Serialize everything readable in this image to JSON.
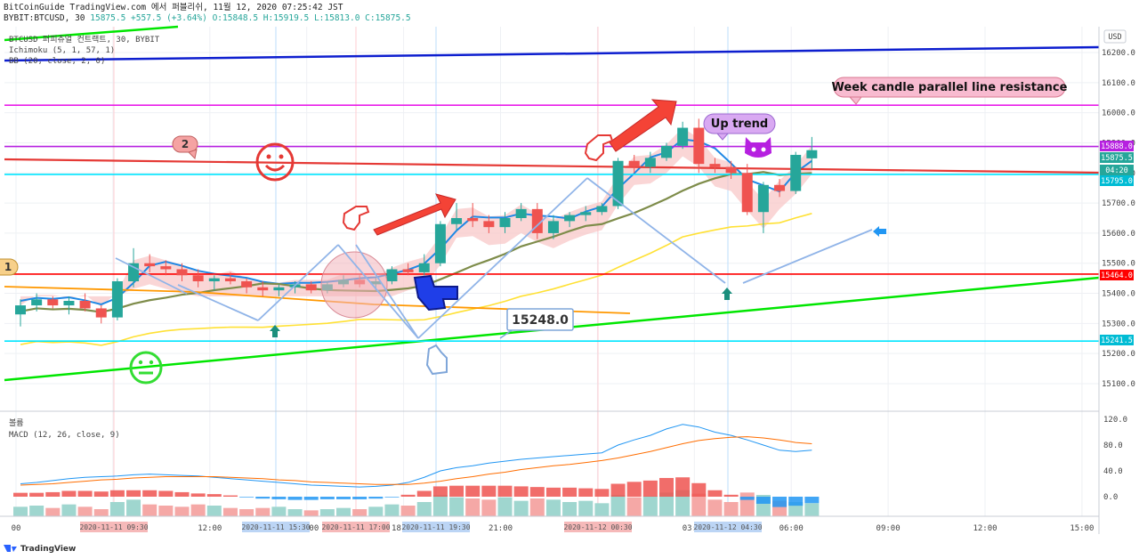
{
  "header": {
    "line1": "BitCoinGuide TradingView.com 에서 퍼블리쉬, 11월 12, 2020 07:25:42 JST",
    "line2_prefix": "BYBIT:BTCUSD, 30",
    "last": "15875.5",
    "change": "+557.5 (+3.64%)",
    "ohlc": "O:15848.5 H:15919.5 L:15813.0 C:15875.5"
  },
  "legend": {
    "symbol": "BTCUSD 퍼피츄얼 컨트랙트, 30, BYBIT",
    "ichimoku": "Ichimoku (5, 1, 57, 1)",
    "bb": "BB (20, close, 2, 0)",
    "volume": "볼륨",
    "macd": "MACD (12, 26, close, 9)"
  },
  "currency": "USD",
  "brand": "TradingView",
  "annotations": {
    "resistance": "Week candle parallel line resistance",
    "uptrend": "Up trend",
    "price_callout": "15248.0",
    "num1": "1",
    "num2": "2"
  },
  "price_badges": [
    {
      "text": "15888.0",
      "color": "#b620e0"
    },
    {
      "text": "15875.5",
      "color": "#26a69a"
    },
    {
      "text": "04:20",
      "color": "#26a69a"
    },
    {
      "text": "15795.0",
      "color": "#00bcd4"
    },
    {
      "text": "15464.0",
      "color": "#ff0000"
    },
    {
      "text": "15241.5",
      "color": "#00bcd4"
    }
  ],
  "time_badges": [
    "2020-11-11  09:30",
    "2020-11-11  15:30",
    "2020-11-11  17:00",
    "2020-11-11  19:30",
    "2020-11-12  00:30",
    "2020-11-12  04:30"
  ],
  "chart_data": {
    "type": "candlestick",
    "symbol": "BYBIT:BTCUSD",
    "interval": "30",
    "price_axis": {
      "ticks": [
        "16200.0",
        "16100.0",
        "16000.0",
        "15900.0",
        "15800.0",
        "15700.0",
        "15600.0",
        "15500.0",
        "15400.0",
        "15300.0",
        "15200.0",
        "15100.0"
      ]
    },
    "time_axis": {
      "ticks": [
        {
          "label": "00",
          "i": 0
        },
        {
          "label": "09:00",
          "i": 6
        },
        {
          "label": "12:00",
          "i": 12
        },
        {
          "label": "15:00",
          "i": 18
        },
        {
          "label": "18:00",
          "i": 24
        },
        {
          "label": "21:00",
          "i": 30
        },
        {
          "label": "12",
          "i": 36
        },
        {
          "label": "03:00",
          "i": 42
        },
        {
          "label": "06:00",
          "i": 48
        },
        {
          "label": "09:00",
          "i": 54
        },
        {
          "label": "12:00",
          "i": 60
        },
        {
          "label": "15:00",
          "i": 66
        }
      ]
    },
    "candles": [
      [
        15330,
        15380,
        15290,
        15360
      ],
      [
        15360,
        15400,
        15340,
        15380
      ],
      [
        15380,
        15390,
        15350,
        15360
      ],
      [
        15360,
        15390,
        15330,
        15375
      ],
      [
        15375,
        15400,
        15340,
        15350
      ],
      [
        15350,
        15360,
        15300,
        15320
      ],
      [
        15320,
        15450,
        15310,
        15440
      ],
      [
        15440,
        15550,
        15420,
        15500
      ],
      [
        15500,
        15530,
        15470,
        15490
      ],
      [
        15490,
        15510,
        15460,
        15480
      ],
      [
        15480,
        15500,
        15440,
        15460
      ],
      [
        15460,
        15480,
        15420,
        15440
      ],
      [
        15440,
        15460,
        15410,
        15450
      ],
      [
        15450,
        15470,
        15430,
        15440
      ],
      [
        15440,
        15450,
        15400,
        15420
      ],
      [
        15420,
        15440,
        15390,
        15410
      ],
      [
        15410,
        15430,
        15390,
        15420
      ],
      [
        15420,
        15440,
        15400,
        15430
      ],
      [
        15430,
        15440,
        15400,
        15410
      ],
      [
        15410,
        15440,
        15400,
        15430
      ],
      [
        15430,
        15460,
        15420,
        15445
      ],
      [
        15445,
        15460,
        15420,
        15430
      ],
      [
        15430,
        15450,
        15410,
        15440
      ],
      [
        15440,
        15490,
        15430,
        15480
      ],
      [
        15480,
        15500,
        15460,
        15470
      ],
      [
        15470,
        15530,
        15460,
        15500
      ],
      [
        15500,
        15640,
        15490,
        15630
      ],
      [
        15630,
        15700,
        15610,
        15650
      ],
      [
        15650,
        15700,
        15620,
        15640
      ],
      [
        15640,
        15660,
        15600,
        15620
      ],
      [
        15620,
        15670,
        15600,
        15650
      ],
      [
        15650,
        15700,
        15640,
        15680
      ],
      [
        15680,
        15700,
        15580,
        15600
      ],
      [
        15600,
        15660,
        15580,
        15640
      ],
      [
        15640,
        15670,
        15620,
        15660
      ],
      [
        15660,
        15690,
        15640,
        15670
      ],
      [
        15670,
        15700,
        15660,
        15690
      ],
      [
        15690,
        15850,
        15680,
        15840
      ],
      [
        15840,
        15860,
        15800,
        15820
      ],
      [
        15820,
        15870,
        15800,
        15850
      ],
      [
        15850,
        15900,
        15840,
        15890
      ],
      [
        15890,
        15970,
        15880,
        15950
      ],
      [
        15950,
        15980,
        15800,
        15830
      ],
      [
        15830,
        15850,
        15800,
        15820
      ],
      [
        15820,
        15840,
        15780,
        15800
      ],
      [
        15800,
        15830,
        15660,
        15670
      ],
      [
        15670,
        15770,
        15600,
        15760
      ],
      [
        15760,
        15780,
        15720,
        15740
      ],
      [
        15740,
        15870,
        15730,
        15860
      ],
      [
        15848.5,
        15919.5,
        15813,
        15875.5
      ]
    ],
    "volume": [
      8,
      9,
      7,
      10,
      8,
      6,
      12,
      14,
      10,
      9,
      8,
      10,
      9,
      7,
      6,
      7,
      8,
      6,
      5,
      6,
      7,
      6,
      8,
      10,
      9,
      12,
      18,
      16,
      15,
      14,
      16,
      13,
      15,
      14,
      12,
      13,
      11,
      18,
      16,
      17,
      20,
      22,
      19,
      14,
      12,
      20,
      18,
      13,
      12,
      11
    ],
    "macd": [
      20,
      22,
      25,
      28,
      30,
      31,
      32,
      34,
      35,
      34,
      33,
      32,
      30,
      28,
      26,
      24,
      22,
      20,
      18,
      17,
      16,
      15,
      16,
      18,
      22,
      30,
      40,
      45,
      48,
      52,
      55,
      58,
      60,
      62,
      64,
      66,
      68,
      80,
      88,
      95,
      105,
      112,
      108,
      100,
      95,
      88,
      80,
      72,
      70,
      72
    ],
    "macd_signal": [
      18,
      19,
      20,
      22,
      24,
      26,
      27,
      29,
      30,
      31,
      31,
      31,
      31,
      30,
      29,
      28,
      26,
      25,
      23,
      22,
      21,
      20,
      19,
      19,
      19,
      21,
      24,
      28,
      31,
      35,
      38,
      42,
      45,
      48,
      50,
      53,
      56,
      60,
      65,
      70,
      76,
      82,
      87,
      90,
      92,
      93,
      91,
      88,
      84,
      82
    ],
    "histogram": [
      6,
      6,
      7,
      9,
      9,
      8,
      10,
      10,
      10,
      9,
      7,
      5,
      4,
      2,
      -1,
      -3,
      -4,
      -5,
      -5,
      -4,
      -4,
      -4,
      -3,
      -1,
      3,
      9,
      16,
      17,
      17,
      17,
      17,
      16,
      15,
      14,
      14,
      13,
      12,
      20,
      23,
      25,
      29,
      30,
      21,
      10,
      3,
      -5,
      -11,
      -16,
      -14,
      -10
    ],
    "horizontal_levels": [
      {
        "price": 15888.0,
        "color": "#b620e0"
      },
      {
        "price": 15795.0,
        "color": "#00e5ff"
      },
      {
        "price": 15464.0,
        "color": "#ff0000"
      },
      {
        "price": 15241.5,
        "color": "#00e5ff"
      },
      {
        "price": 16025.0,
        "color": "#e91ee9"
      }
    ],
    "macd_axis": {
      "ticks": [
        "120.0",
        "80.0",
        "40.0",
        "0.0"
      ]
    }
  }
}
